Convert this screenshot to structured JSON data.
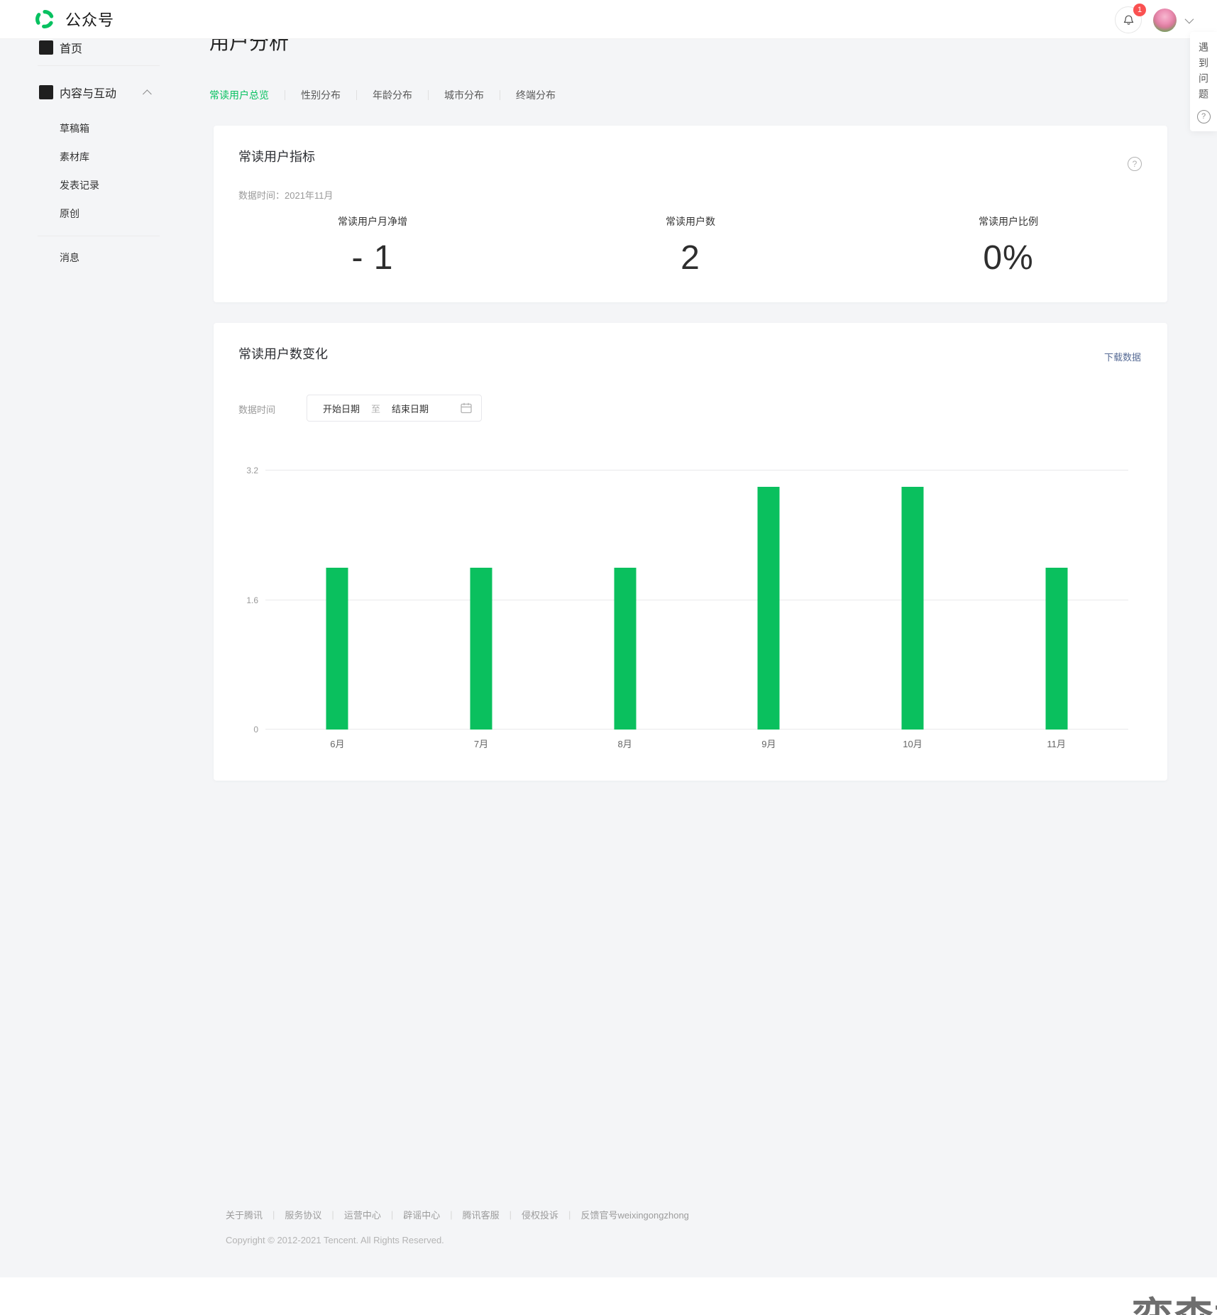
{
  "topbar": {
    "brand": "公众号",
    "notification_count": "1"
  },
  "help_panel": {
    "label": "遇到问题"
  },
  "icons": {
    "help": "?"
  },
  "sidebar": {
    "items": [
      {
        "label": "首页"
      },
      {
        "label": "内容与互动"
      },
      {
        "label": "草稿箱"
      },
      {
        "label": "素材库"
      },
      {
        "label": "发表记录"
      },
      {
        "label": "原创"
      },
      {
        "label": "消息"
      }
    ]
  },
  "page": {
    "title": "用户分析",
    "tabs": [
      {
        "label": "常读用户总览",
        "active": true
      },
      {
        "label": "性别分布",
        "active": false
      },
      {
        "label": "年龄分布",
        "active": false
      },
      {
        "label": "城市分布",
        "active": false
      },
      {
        "label": "终端分布",
        "active": false
      }
    ]
  },
  "metrics_card": {
    "title": "常读用户指标",
    "data_time_label": "数据时间：",
    "data_time_value": "2021年11月",
    "metrics": [
      {
        "label": "常读用户月净增",
        "value": "- 1"
      },
      {
        "label": "常读用户数",
        "value": "2"
      },
      {
        "label": "常读用户比例",
        "value": "0%"
      }
    ]
  },
  "trend_card": {
    "title": "常读用户数变化",
    "download_label": "下载数据",
    "data_time_label": "数据时间",
    "date_start_placeholder": "开始日期",
    "date_separator": "至",
    "date_end_placeholder": "结束日期"
  },
  "chart_data": {
    "type": "bar",
    "title": "常读用户数变化",
    "categories": [
      "6月",
      "7月",
      "8月",
      "9月",
      "10月",
      "11月"
    ],
    "values": [
      2,
      2,
      2,
      3,
      3,
      2
    ],
    "ylim": [
      0,
      3.2
    ],
    "yticks": [
      0,
      1.6,
      3.2
    ],
    "bar_color": "#0ac05e",
    "grid": true,
    "legend": false,
    "xlabel": "",
    "ylabel": ""
  },
  "footer": {
    "links": [
      "关于腾讯",
      "服务协议",
      "运营中心",
      "辟谣中心",
      "腾讯客服",
      "侵权投诉",
      "反馈官号weixingongzhong"
    ],
    "separator": "|",
    "copyright": "Copyright © 2012-2021 Tencent. All Rights Reserved."
  },
  "watermark": "奕森格",
  "colors": {
    "brand_green": "#07c160",
    "bar_green": "#0ac05e",
    "link_blue": "#576b95",
    "badge_red": "#fa5151"
  }
}
